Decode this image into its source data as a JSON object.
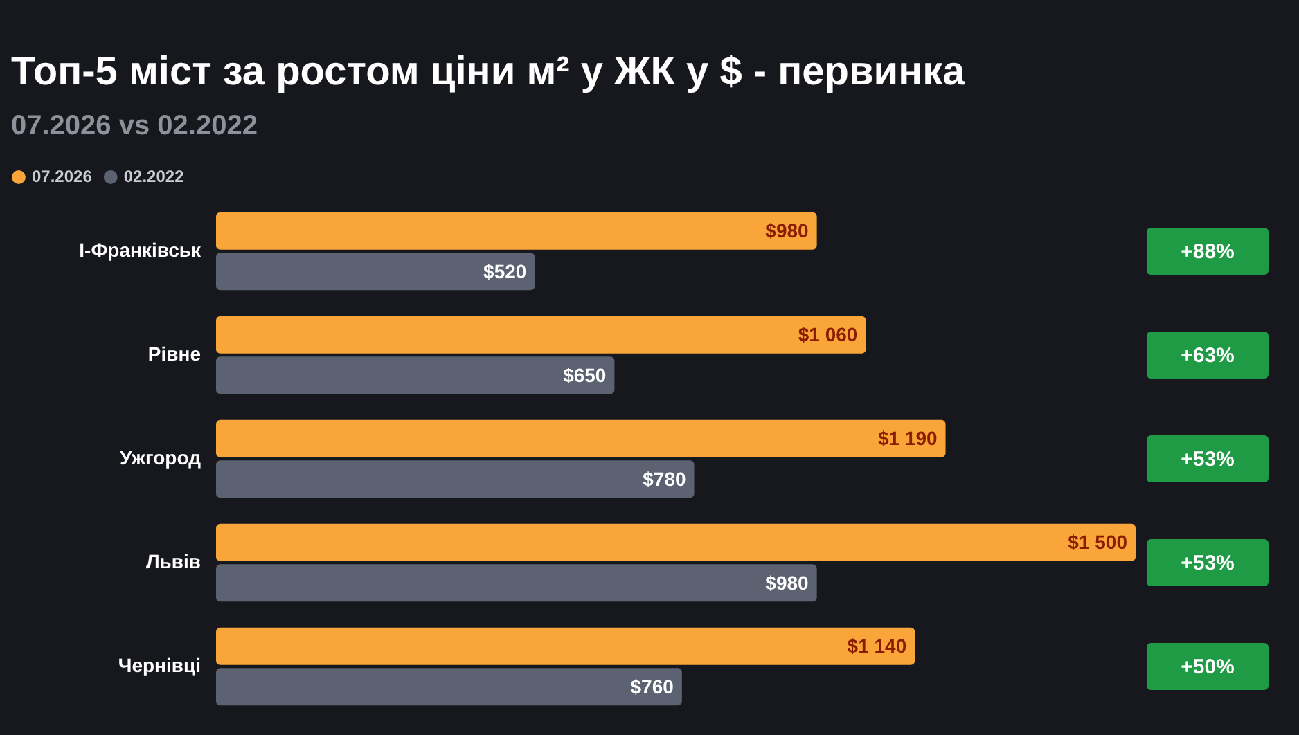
{
  "chart_data": {
    "type": "bar",
    "orientation": "horizontal",
    "title": "Топ-5 міст за ростом ціни м² у ЖК у $ - первинка",
    "subtitle": "07.2026 vs 02.2022",
    "categories": [
      "І-Франківськ",
      "Рівне",
      "Ужгород",
      "Львів",
      "Чернівці"
    ],
    "series": [
      {
        "name": "07.2026",
        "color": "#f9a53a",
        "values": [
          980,
          1060,
          1190,
          1500,
          1140
        ],
        "value_labels": [
          "$980",
          "$1 060",
          "$1 190",
          "$1 500",
          "$1 140"
        ]
      },
      {
        "name": "02.2022",
        "color": "#5c6272",
        "values": [
          520,
          650,
          780,
          980,
          760
        ],
        "value_labels": [
          "$520",
          "$650",
          "$780",
          "$980",
          "$760"
        ]
      }
    ],
    "xlim": [
      0,
      1500
    ],
    "tick_labels": "y",
    "legend": "top left",
    "annotations": [
      "+88%",
      "+63%",
      "+53%",
      "+53%",
      "+50%"
    ]
  }
}
